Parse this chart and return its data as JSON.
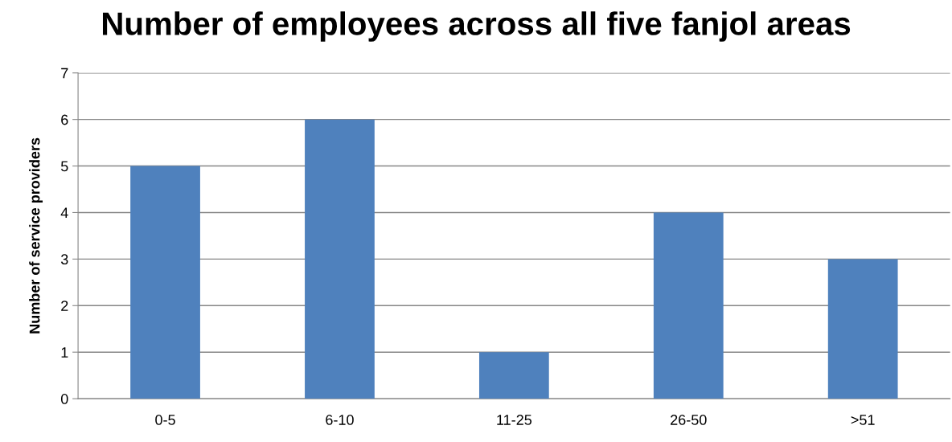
{
  "chart_data": {
    "type": "bar",
    "title": "Number of employees across all five fanjol areas",
    "ylabel": "Number of service providers",
    "categories": [
      "0-5",
      "6-10",
      "11-25",
      "26-50",
      ">51"
    ],
    "values": [
      5,
      6,
      1,
      4,
      3
    ],
    "color": "#4f81bd",
    "ylim": [
      0,
      7
    ],
    "yticks": [
      0,
      1,
      2,
      3,
      4,
      5,
      6,
      7
    ],
    "grid": "y",
    "legend": false
  }
}
